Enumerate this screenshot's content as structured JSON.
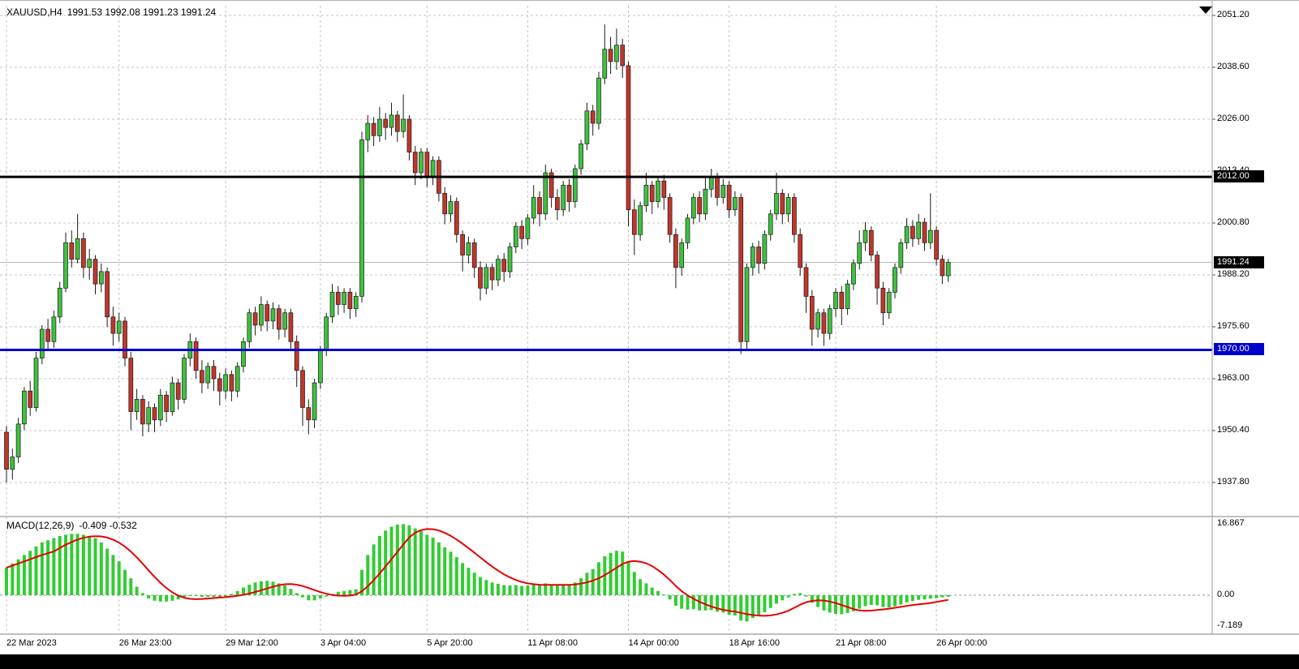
{
  "window": {
    "title_symbol": "XAUUSD,H4",
    "title_ohlc": "1991.53 1992.08 1991.23 1991.24"
  },
  "chart_data": {
    "type": "candlestick",
    "symbol": "XAUUSD",
    "timeframe": "H4",
    "ohlc_display": {
      "open": "1991.53",
      "high": "1992.08",
      "low": "1991.23",
      "close": "1991.24"
    },
    "grid": true,
    "price_axis_ticks": [
      "2051.20",
      "2038.60",
      "2026.00",
      "2013.40",
      "2000.80",
      "1988.20",
      "1975.60",
      "1963.00",
      "1950.40",
      "1937.80"
    ],
    "time_axis_ticks": [
      {
        "label": "22 Mar 2023",
        "index": 0
      },
      {
        "label": "26 Mar 23:00",
        "index": 19
      },
      {
        "label": "29 Mar 12:00",
        "index": 37
      },
      {
        "label": "3 Apr 04:00",
        "index": 53
      },
      {
        "label": "5 Apr 20:00",
        "index": 71
      },
      {
        "label": "11 Apr 08:00",
        "index": 88
      },
      {
        "label": "14 Apr 00:00",
        "index": 105
      },
      {
        "label": "18 Apr 16:00",
        "index": 122
      },
      {
        "label": "21 Apr 08:00",
        "index": 140
      },
      {
        "label": "26 Apr 00:00",
        "index": 157
      }
    ],
    "horizontal_lines": [
      {
        "value": 2012.0,
        "label": "2012.00",
        "color": "#000000",
        "width": 3
      },
      {
        "value": 1970.0,
        "label": "1970.00",
        "color": "#0000CD",
        "width": 3
      }
    ],
    "current_price": {
      "value": 1991.24,
      "label": "1991.24"
    },
    "colors": {
      "up": "#3FC13F",
      "down": "#C0362C",
      "wick": "#1a1a1a",
      "grid": "#c4c4c4",
      "bid_line": "#b8b8b8",
      "macd_hist": "#33CC33",
      "macd_signal": "#E60000"
    },
    "candles": [
      [
        1950,
        1951.5,
        1937.8,
        1941
      ],
      [
        1941,
        1946,
        1938.5,
        1944
      ],
      [
        1944,
        1953.5,
        1942.5,
        1952
      ],
      [
        1952,
        1961,
        1950.5,
        1960
      ],
      [
        1960,
        1962.5,
        1954,
        1956
      ],
      [
        1956,
        1969.5,
        1955,
        1968
      ],
      [
        1968,
        1976,
        1966.5,
        1975
      ],
      [
        1975,
        1977.5,
        1970,
        1972
      ],
      [
        1972,
        1979.5,
        1970.5,
        1978
      ],
      [
        1978,
        1986.5,
        1976.5,
        1985
      ],
      [
        1985,
        1998.5,
        1984,
        1996
      ],
      [
        1996,
        1999,
        1990,
        1992
      ],
      [
        1992,
        2003,
        1991,
        1997
      ],
      [
        1997,
        1998.5,
        1987.5,
        1990
      ],
      [
        1990,
        1994.5,
        1987,
        1992
      ],
      [
        1992,
        1993,
        1983.5,
        1986
      ],
      [
        1986,
        1991,
        1984,
        1989
      ],
      [
        1989,
        1990,
        1975.5,
        1978
      ],
      [
        1978,
        1980.5,
        1971,
        1974
      ],
      [
        1974,
        1979,
        1972,
        1977
      ],
      [
        1977,
        1978,
        1966,
        1968
      ],
      [
        1968,
        1969.5,
        1950.5,
        1955
      ],
      [
        1955,
        1960.5,
        1953,
        1958
      ],
      [
        1958,
        1959,
        1949,
        1952
      ],
      [
        1952,
        1957.5,
        1950,
        1956
      ],
      [
        1956,
        1957,
        1950,
        1953
      ],
      [
        1953,
        1960.5,
        1951.5,
        1959
      ],
      [
        1959,
        1960,
        1952.5,
        1955
      ],
      [
        1955,
        1963.5,
        1954,
        1962
      ],
      [
        1962,
        1963,
        1955.5,
        1958
      ],
      [
        1958,
        1969,
        1957,
        1968
      ],
      [
        1968,
        1974,
        1966,
        1972
      ],
      [
        1972,
        1973,
        1963,
        1965
      ],
      [
        1965,
        1967.5,
        1959.5,
        1962
      ],
      [
        1962,
        1967,
        1960.5,
        1966
      ],
      [
        1966,
        1967.5,
        1960,
        1963
      ],
      [
        1963,
        1964.5,
        1956.5,
        1960
      ],
      [
        1960,
        1965.5,
        1958,
        1964
      ],
      [
        1964,
        1965,
        1957.5,
        1960
      ],
      [
        1960,
        1967,
        1958.5,
        1966
      ],
      [
        1966,
        1973,
        1964.5,
        1972
      ],
      [
        1972,
        1980,
        1970.5,
        1979
      ],
      [
        1979,
        1980.5,
        1973.5,
        1976
      ],
      [
        1976,
        1983,
        1974.5,
        1981
      ],
      [
        1981,
        1982,
        1974.5,
        1977
      ],
      [
        1977,
        1981.5,
        1975,
        1980
      ],
      [
        1980,
        1981,
        1972.5,
        1975
      ],
      [
        1975,
        1980,
        1973,
        1979
      ],
      [
        1979,
        1980,
        1970,
        1972
      ],
      [
        1972,
        1973.5,
        1961,
        1965
      ],
      [
        1965,
        1966,
        1951.5,
        1956
      ],
      [
        1956,
        1958,
        1949.5,
        1953
      ],
      [
        1953,
        1963,
        1951,
        1962
      ],
      [
        1962,
        1971,
        1960.5,
        1970
      ],
      [
        1970,
        1979,
        1968.5,
        1978
      ],
      [
        1978,
        1986,
        1976.5,
        1984
      ],
      [
        1984,
        1985.5,
        1978.5,
        1981
      ],
      [
        1981,
        1985,
        1979,
        1984
      ],
      [
        1984,
        1985,
        1977.5,
        1980
      ],
      [
        1980,
        1984,
        1978,
        1983
      ],
      [
        1983,
        2023,
        1981.5,
        2021
      ],
      [
        2021,
        2027,
        2018,
        2025
      ],
      [
        2025,
        2026.5,
        2019.5,
        2022
      ],
      [
        2022,
        2029,
        2020.5,
        2026
      ],
      [
        2026,
        2027.5,
        2021,
        2024
      ],
      [
        2024,
        2030,
        2022,
        2027
      ],
      [
        2027,
        2028,
        2020.5,
        2023
      ],
      [
        2023,
        2032,
        2021.5,
        2026
      ],
      [
        2026,
        2027,
        2016,
        2018
      ],
      [
        2018,
        2019.5,
        2010,
        2013
      ],
      [
        2013,
        2019,
        2011.5,
        2018
      ],
      [
        2018,
        2019,
        2009.5,
        2012
      ],
      [
        2012,
        2017,
        2010,
        2016
      ],
      [
        2016,
        2017,
        2006,
        2008
      ],
      [
        2008,
        2009.5,
        2000.5,
        2003
      ],
      [
        2003,
        2007.5,
        2001,
        2006
      ],
      [
        2006,
        2007,
        1996,
        1998
      ],
      [
        1998,
        1999,
        1989,
        1993
      ],
      [
        1993,
        1997.5,
        1991,
        1996
      ],
      [
        1996,
        1997,
        1987.5,
        1990
      ],
      [
        1990,
        1991.5,
        1982,
        1985
      ],
      [
        1985,
        1991,
        1983.5,
        1990
      ],
      [
        1990,
        1991,
        1984.5,
        1987
      ],
      [
        1987,
        1993,
        1985.5,
        1992
      ],
      [
        1992,
        1993.5,
        1986.5,
        1989
      ],
      [
        1989,
        1996,
        1987.5,
        1995
      ],
      [
        1995,
        2001,
        1993.5,
        2000
      ],
      [
        2000,
        2001.5,
        1994.5,
        1997
      ],
      [
        1997,
        2003,
        1995.5,
        2002
      ],
      [
        2002,
        2010,
        2000.5,
        2007
      ],
      [
        2007,
        2008.5,
        2000,
        2003
      ],
      [
        2003,
        2015,
        2001.5,
        2013
      ],
      [
        2013,
        2014,
        2004.5,
        2007
      ],
      [
        2007,
        2009,
        2001.5,
        2004
      ],
      [
        2004,
        2011,
        2002.5,
        2010
      ],
      [
        2010,
        2011.5,
        2003.5,
        2006
      ],
      [
        2006,
        2015,
        2004.5,
        2014
      ],
      [
        2014,
        2021,
        2012.5,
        2020
      ],
      [
        2020,
        2030,
        2018.5,
        2028
      ],
      [
        2028,
        2029.5,
        2022,
        2025
      ],
      [
        2025,
        2037.5,
        2023.5,
        2036
      ],
      [
        2036,
        2049,
        2034.5,
        2043
      ],
      [
        2043,
        2046,
        2037,
        2040
      ],
      [
        2040,
        2048,
        2038,
        2044
      ],
      [
        2044,
        2045.5,
        2036,
        2039
      ],
      [
        2039,
        2040,
        2000,
        2004
      ],
      [
        2004,
        2006.5,
        1993,
        1998
      ],
      [
        1998,
        2006,
        1996.5,
        2005
      ],
      [
        2005,
        2013,
        2003.5,
        2010
      ],
      [
        2010,
        2011,
        2003,
        2006
      ],
      [
        2006,
        2012,
        2004.5,
        2011
      ],
      [
        2011,
        2012.5,
        2004,
        2007
      ],
      [
        2007,
        2008,
        1996,
        1998
      ],
      [
        1998,
        1999.5,
        1985,
        1990
      ],
      [
        1990,
        1997,
        1988,
        1996
      ],
      [
        1996,
        2003,
        1994.5,
        2002
      ],
      [
        2002,
        2008,
        2000.5,
        2007
      ],
      [
        2007,
        2008.5,
        2001,
        2003
      ],
      [
        2003,
        2012,
        2001.5,
        2009
      ],
      [
        2009,
        2014,
        2007,
        2012
      ],
      [
        2012,
        2013,
        2005,
        2007
      ],
      [
        2007,
        2011.5,
        2005.5,
        2010
      ],
      [
        2010,
        2011,
        2002,
        2004
      ],
      [
        2004,
        2008.5,
        2002.5,
        2007
      ],
      [
        2007,
        2008,
        1969,
        1972
      ],
      [
        1972,
        1991,
        1970,
        1990
      ],
      [
        1990,
        1996,
        1988,
        1995
      ],
      [
        1995,
        1996.5,
        1988.5,
        1991
      ],
      [
        1991,
        1999,
        1989.5,
        1998
      ],
      [
        1998,
        2004,
        1996.5,
        2003
      ],
      [
        2003,
        2013,
        2001.5,
        2008
      ],
      [
        2008,
        2009,
        2000.5,
        2003
      ],
      [
        2003,
        2008,
        2001,
        2007
      ],
      [
        2007,
        2008,
        1996,
        1998
      ],
      [
        1998,
        1999.5,
        1988,
        1990
      ],
      [
        1990,
        1991,
        1979,
        1983
      ],
      [
        1983,
        1984.5,
        1971,
        1975
      ],
      [
        1975,
        1980,
        1973,
        1979
      ],
      [
        1979,
        1980,
        1971,
        1974
      ],
      [
        1974,
        1981,
        1972.5,
        1980
      ],
      [
        1980,
        1985,
        1978,
        1984
      ],
      [
        1984,
        1985.5,
        1976,
        1980
      ],
      [
        1980,
        1987,
        1978.5,
        1986
      ],
      [
        1986,
        1992,
        1984.5,
        1991
      ],
      [
        1991,
        1999,
        1989.5,
        1996
      ],
      [
        1996,
        2001,
        1994,
        1999
      ],
      [
        1999,
        2000,
        1991.5,
        1993
      ],
      [
        1993,
        1994,
        1981,
        1985
      ],
      [
        1985,
        1986.5,
        1976,
        1979
      ],
      [
        1979,
        1985,
        1977.5,
        1984
      ],
      [
        1984,
        1991,
        1982.5,
        1990
      ],
      [
        1990,
        1997,
        1988.5,
        1996
      ],
      [
        1996,
        2002,
        1994.5,
        2000
      ],
      [
        2000,
        2001.5,
        1995,
        1997
      ],
      [
        1997,
        2003,
        1995.5,
        2001
      ],
      [
        2001,
        2002,
        1994,
        1996
      ],
      [
        1996,
        2008,
        1994.5,
        1999
      ],
      [
        1999,
        2000,
        1990.5,
        1992
      ],
      [
        1992,
        1993,
        1986,
        1988
      ],
      [
        1988,
        1992.08,
        1986.5,
        1991.24
      ]
    ],
    "macd": {
      "label": "MACD(12,26,9)",
      "fast": 12,
      "slow": 26,
      "signal": 9,
      "current_macd": -0.409,
      "current_signal": -0.532,
      "values_text": "-0.409 -0.532",
      "axis_ticks": [
        "16.867",
        "0.00",
        "-7.189"
      ],
      "histogram": [
        6.5,
        7.5,
        8.5,
        9.5,
        10.5,
        11.5,
        12.5,
        13,
        13.5,
        14,
        14.3,
        14.5,
        14.5,
        14.3,
        14,
        13.5,
        12.5,
        11,
        9.5,
        8,
        6,
        4,
        2,
        0.5,
        -0.8,
        -1.3,
        -1.5,
        -1.5,
        -1.3,
        -1,
        -0.6,
        -0.2,
        -0.2,
        -0.4,
        -0.4,
        -0.4,
        -0.5,
        -0.4,
        0.3,
        1,
        1.8,
        2.5,
        3,
        3.3,
        3.4,
        3.2,
        2.8,
        2.3,
        1.5,
        0.5,
        -0.5,
        -1.2,
        -1.2,
        -0.8,
        -0.3,
        0.3,
        0.8,
        1,
        1.2,
        1.4,
        6,
        9.5,
        12,
        14,
        15.3,
        16.2,
        16.7,
        16.8,
        16.5,
        15.8,
        15.2,
        14.3,
        13.6,
        12.5,
        11.3,
        10.3,
        9,
        7.6,
        6.5,
        5.3,
        4.3,
        3.6,
        3,
        2.7,
        2.4,
        2.3,
        2.4,
        2.2,
        2.3,
        2.6,
        2.4,
        2.8,
        2.6,
        2.3,
        2.5,
        2.4,
        3,
        4,
        5.3,
        6.2,
        7.8,
        9.2,
        10,
        10.5,
        10.3,
        8,
        5.5,
        3.8,
        2.8,
        1.8,
        1,
        0.2,
        -1,
        -2.5,
        -3.2,
        -3.4,
        -3.3,
        -3.6,
        -3.6,
        -3.5,
        -3.9,
        -4.1,
        -4.6,
        -4.8,
        -6,
        -6.2,
        -5.4,
        -4.8,
        -4,
        -3,
        -2,
        -1.2,
        -0.5,
        0.3,
        0.5,
        -0.3,
        -1.8,
        -2.8,
        -3.6,
        -4.1,
        -4.4,
        -4.5,
        -4.2,
        -3.8,
        -3.2,
        -2.6,
        -2.3,
        -2.4,
        -2.8,
        -2.9,
        -2.6,
        -2.2,
        -1.7,
        -1.4,
        -1.1,
        -1,
        -0.8,
        -0.7,
        -0.5,
        -0.409
      ]
    }
  }
}
